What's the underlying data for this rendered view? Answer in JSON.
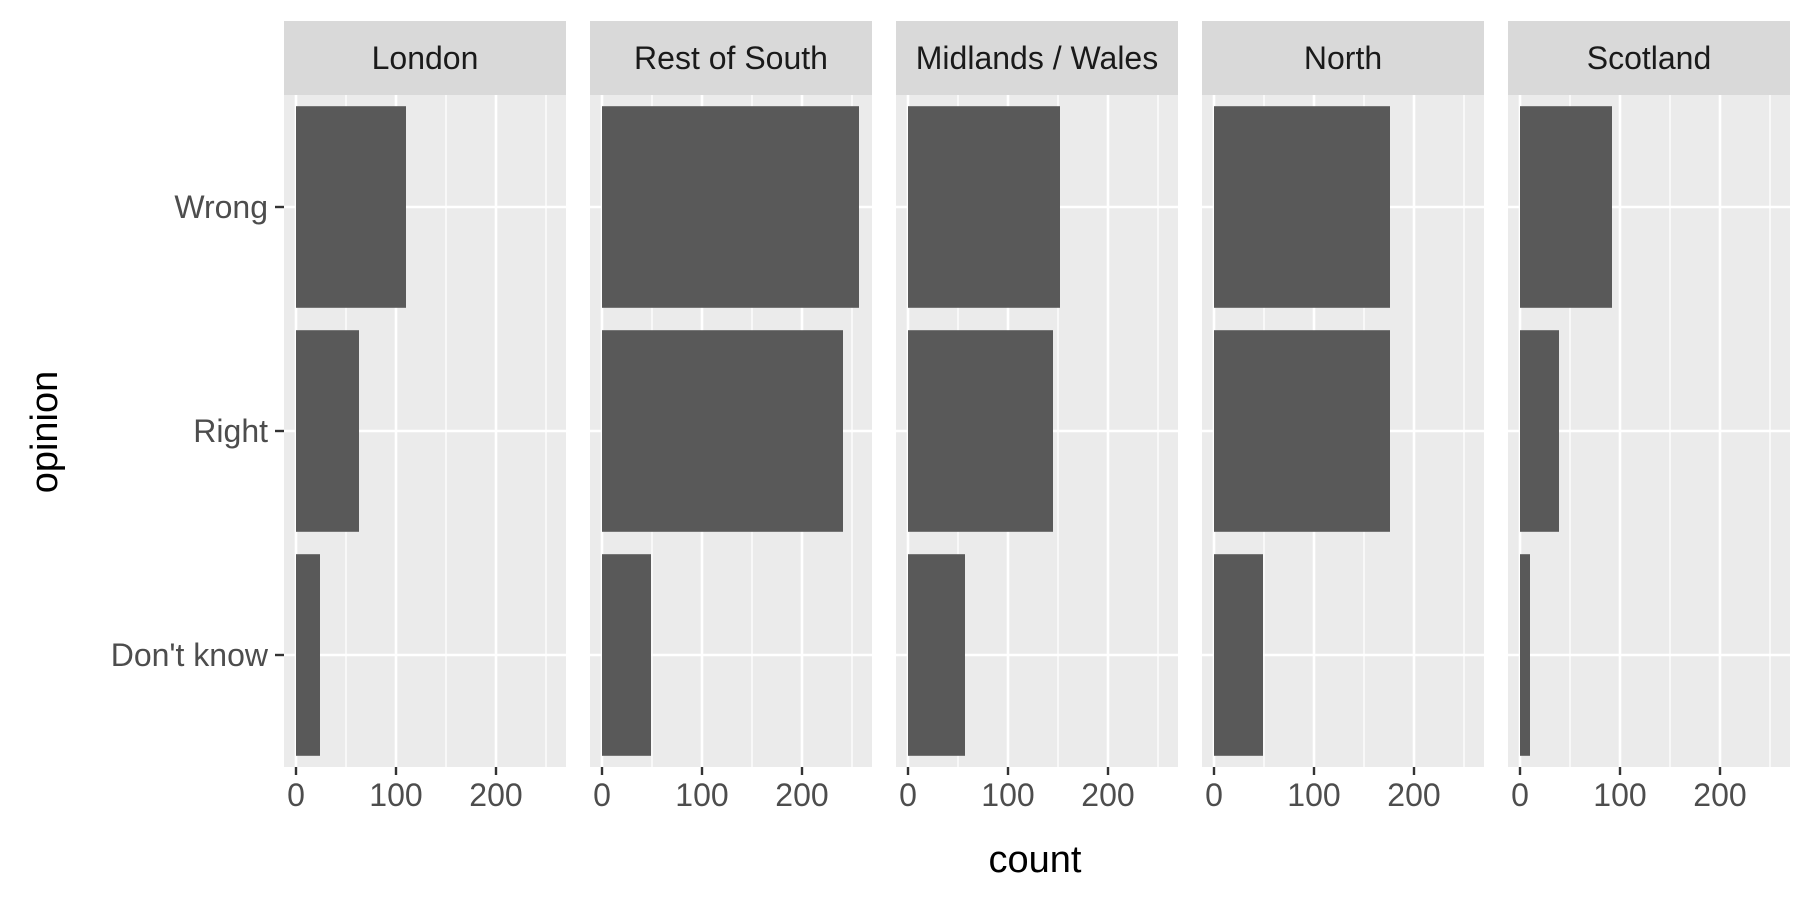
{
  "chart_data": {
    "type": "bar",
    "orientation": "horizontal",
    "facets": [
      "London",
      "Rest of South",
      "Midlands / Wales",
      "North",
      "Scotland"
    ],
    "categories": [
      "Wrong",
      "Right",
      "Don't know"
    ],
    "values": [
      [
        110,
        63,
        24
      ],
      [
        257,
        241,
        49
      ],
      [
        152,
        145,
        57
      ],
      [
        176,
        176,
        49
      ],
      [
        92,
        39,
        10
      ]
    ],
    "xlabel": "count",
    "ylabel": "opinion",
    "xlim": [
      -12,
      270
    ],
    "x_ticks": [
      0,
      100,
      200
    ],
    "x_tick_labels": [
      "0",
      "100",
      "200"
    ],
    "grid": true,
    "colors": {
      "bar": "#595959",
      "panel": "#ebebeb",
      "strip": "#d9d9d9",
      "grid": "#ffffff"
    }
  }
}
